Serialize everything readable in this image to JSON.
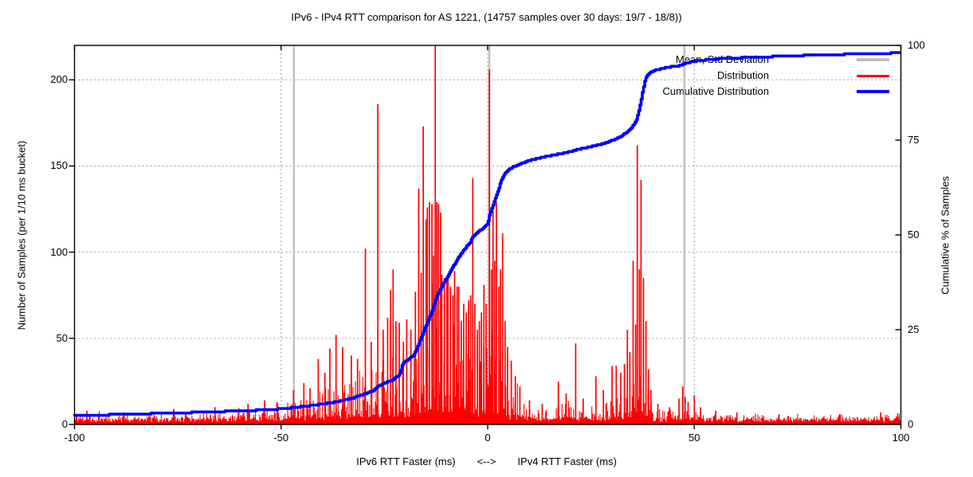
{
  "title": "IPv6 - IPv4 RTT comparison for AS 1221, (14757 samples over 30 days: 19/7 - 18/8))",
  "axes": {
    "x": {
      "label_left": "IPv6 RTT Faster (ms)",
      "label_arrow": "<-->",
      "label_right": "IPv4 RTT Faster (ms)",
      "ticks": [
        -100,
        -50,
        0,
        50,
        100
      ],
      "range": [
        -100,
        100
      ]
    },
    "y1": {
      "label": "Number of Samples (per 1/10 ms bucket)",
      "ticks": [
        0,
        50,
        100,
        150,
        200
      ],
      "range": [
        0,
        220
      ]
    },
    "y2": {
      "label": "Cumulative % of Samples",
      "ticks": [
        0,
        25,
        50,
        75,
        100
      ],
      "range": [
        0,
        100
      ]
    }
  },
  "legend": [
    {
      "label": "Mean, Std Deviation",
      "color": "#c0c0c0"
    },
    {
      "label": "Distribution",
      "color": "#ff0000"
    },
    {
      "label": "Cumulative Distribution",
      "color": "#0000ff"
    }
  ],
  "colors": {
    "distribution": "#ff0000",
    "cumulative": "#0000ff",
    "mean_std": "#c0c0c0",
    "grid": "#9a9a9a",
    "border": "#000000"
  },
  "chart_data": {
    "type": [
      "bar",
      "line"
    ],
    "title": "IPv6 - IPv4 RTT comparison for AS 1221, (14757 samples over 30 days: 19/7 - 18/8))",
    "xlabel": "IPv6 RTT Faster (ms)  <-->  IPv4 RTT Faster (ms)",
    "ylabel": "Number of Samples (per 1/10 ms bucket)",
    "y2label": "Cumulative % of Samples",
    "xlim": [
      -100,
      100
    ],
    "ylim": [
      0,
      220
    ],
    "y2lim": [
      0,
      100
    ],
    "grid_x_at": [
      -50,
      0,
      50
    ],
    "grid_y1_at": [
      50,
      100,
      150,
      200
    ],
    "samples_total": 14757,
    "days": 30,
    "date_range": "19/7 - 18/8",
    "as_number": "AS 1221",
    "mean_std_lines_x": [
      -46.9,
      0.4,
      47.6
    ],
    "distribution_spikes": [
      [
        -97,
        8
      ],
      [
        -88,
        7
      ],
      [
        -76,
        9
      ],
      [
        -66,
        10
      ],
      [
        -58,
        12
      ],
      [
        -54,
        14
      ],
      [
        -51,
        13
      ],
      [
        -47,
        20
      ],
      [
        -44.5,
        24
      ],
      [
        -43,
        21
      ],
      [
        -41,
        38
      ],
      [
        -39.4,
        30
      ],
      [
        -38.2,
        44
      ],
      [
        -36.7,
        52
      ],
      [
        -35.1,
        45
      ],
      [
        -33,
        40
      ],
      [
        -31.5,
        38
      ],
      [
        -29.6,
        102
      ],
      [
        -28.2,
        48
      ],
      [
        -26.6,
        186
      ],
      [
        -25.3,
        55
      ],
      [
        -24.2,
        62
      ],
      [
        -23.5,
        78
      ],
      [
        -22.9,
        90
      ],
      [
        -22.2,
        60
      ],
      [
        -21.4,
        59
      ],
      [
        -20.4,
        48
      ],
      [
        -19.6,
        61
      ],
      [
        -18.6,
        55
      ],
      [
        -17.5,
        77
      ],
      [
        -16.7,
        137
      ],
      [
        -16.1,
        88
      ],
      [
        -15.6,
        173
      ],
      [
        -14.9,
        119
      ],
      [
        -14.6,
        126
      ],
      [
        -14.1,
        129
      ],
      [
        -13.5,
        128
      ],
      [
        -13.1,
        98
      ],
      [
        -12.7,
        220
      ],
      [
        -12.3,
        129
      ],
      [
        -11.9,
        128
      ],
      [
        -11.4,
        123
      ],
      [
        -11.1,
        87
      ],
      [
        -10.5,
        85
      ],
      [
        -9.9,
        86
      ],
      [
        -9.6,
        87
      ],
      [
        -9.0,
        80
      ],
      [
        -8.4,
        75
      ],
      [
        -8.0,
        89
      ],
      [
        -7.4,
        80
      ],
      [
        -7.0,
        80
      ],
      [
        -6.4,
        60
      ],
      [
        -5.8,
        70
      ],
      [
        -5.2,
        65
      ],
      [
        -4.6,
        72
      ],
      [
        -4.1,
        75
      ],
      [
        -3.6,
        143
      ],
      [
        -3.1,
        70
      ],
      [
        -2.5,
        55
      ],
      [
        -2.0,
        60
      ],
      [
        -1.5,
        65
      ],
      [
        -0.9,
        81
      ],
      [
        -0.4,
        70
      ],
      [
        0.4,
        206
      ],
      [
        0.9,
        90
      ],
      [
        1.3,
        124
      ],
      [
        1.7,
        95
      ],
      [
        2.1,
        129
      ],
      [
        2.7,
        80
      ],
      [
        3.1,
        90
      ],
      [
        3.6,
        111
      ],
      [
        4.2,
        60
      ],
      [
        4.8,
        45
      ],
      [
        5.7,
        37
      ],
      [
        6.7,
        28
      ],
      [
        7.8,
        22
      ],
      [
        10.1,
        14
      ],
      [
        13.2,
        12
      ],
      [
        17.1,
        25
      ],
      [
        19.0,
        18
      ],
      [
        21.3,
        47
      ],
      [
        23.1,
        15
      ],
      [
        26.2,
        28
      ],
      [
        28.0,
        20
      ],
      [
        30.1,
        34
      ],
      [
        31.1,
        34
      ],
      [
        32.2,
        30
      ],
      [
        33.1,
        35
      ],
      [
        33.8,
        55
      ],
      [
        34.4,
        42
      ],
      [
        35.2,
        95
      ],
      [
        35.8,
        58
      ],
      [
        36.2,
        162
      ],
      [
        36.7,
        90
      ],
      [
        37.1,
        142
      ],
      [
        37.7,
        85
      ],
      [
        38.3,
        60
      ],
      [
        38.9,
        32
      ],
      [
        39.5,
        20
      ],
      [
        41.2,
        12
      ],
      [
        44.0,
        10
      ],
      [
        46.3,
        15
      ],
      [
        47.2,
        22
      ],
      [
        47.8,
        16
      ],
      [
        48.5,
        13
      ],
      [
        50.0,
        17
      ],
      [
        51.5,
        10
      ],
      [
        55.2,
        8
      ],
      [
        60.3,
        7
      ],
      [
        70.5,
        6
      ],
      [
        85.2,
        6
      ],
      [
        95.1,
        7
      ]
    ],
    "noise_envelope": [
      [
        -100,
        5
      ],
      [
        -90,
        5
      ],
      [
        -80,
        6
      ],
      [
        -70,
        7
      ],
      [
        -62,
        8
      ],
      [
        -56,
        10
      ],
      [
        -50,
        14
      ],
      [
        -46,
        18
      ],
      [
        -43,
        24
      ],
      [
        -40,
        30
      ],
      [
        -38,
        36
      ],
      [
        -36,
        42
      ],
      [
        -34,
        38
      ],
      [
        -32,
        42
      ],
      [
        -30,
        55
      ],
      [
        -28,
        52
      ],
      [
        -26,
        50
      ],
      [
        -24,
        60
      ],
      [
        -23,
        72
      ],
      [
        -22,
        60
      ],
      [
        -21,
        52
      ],
      [
        -20,
        55
      ],
      [
        -19,
        50
      ],
      [
        -18,
        62
      ],
      [
        -17,
        78
      ],
      [
        -16,
        85
      ],
      [
        -15,
        92
      ],
      [
        -14,
        100
      ],
      [
        -13,
        105
      ],
      [
        -12,
        100
      ],
      [
        -11,
        88
      ],
      [
        -10,
        80
      ],
      [
        -9,
        78
      ],
      [
        -8,
        78
      ],
      [
        -7,
        70
      ],
      [
        -6,
        65
      ],
      [
        -5,
        68
      ],
      [
        -4,
        64
      ],
      [
        -3,
        60
      ],
      [
        -2,
        62
      ],
      [
        -1,
        66
      ],
      [
        0,
        72
      ],
      [
        1,
        80
      ],
      [
        2,
        76
      ],
      [
        3,
        62
      ],
      [
        4,
        48
      ],
      [
        5,
        36
      ],
      [
        6,
        28
      ],
      [
        7,
        24
      ],
      [
        8,
        20
      ],
      [
        10,
        15
      ],
      [
        12,
        13
      ],
      [
        14,
        12
      ],
      [
        16,
        13
      ],
      [
        18,
        15
      ],
      [
        20,
        18
      ],
      [
        21,
        22
      ],
      [
        22,
        16
      ],
      [
        24,
        13
      ],
      [
        26,
        16
      ],
      [
        28,
        16
      ],
      [
        30,
        24
      ],
      [
        31,
        30
      ],
      [
        32,
        30
      ],
      [
        33,
        34
      ],
      [
        34,
        32
      ],
      [
        35,
        40
      ],
      [
        36,
        70
      ],
      [
        36.5,
        85
      ],
      [
        37,
        90
      ],
      [
        37.5,
        80
      ],
      [
        38,
        60
      ],
      [
        38.5,
        40
      ],
      [
        39,
        22
      ],
      [
        40,
        13
      ],
      [
        42,
        9
      ],
      [
        44,
        8
      ],
      [
        46,
        10
      ],
      [
        47,
        14
      ],
      [
        48,
        12
      ],
      [
        49,
        9
      ],
      [
        50,
        10
      ],
      [
        52,
        7
      ],
      [
        55,
        6
      ],
      [
        60,
        5
      ],
      [
        70,
        5
      ],
      [
        80,
        5
      ],
      [
        90,
        5
      ],
      [
        100,
        6
      ]
    ],
    "noise_seed": 1221,
    "noise_step": 0.2,
    "cumulative_pct": [
      [
        -100,
        2.3
      ],
      [
        -90,
        2.6
      ],
      [
        -80,
        2.9
      ],
      [
        -70,
        3.2
      ],
      [
        -60,
        3.6
      ],
      [
        -55,
        3.8
      ],
      [
        -50,
        4.1
      ],
      [
        -45,
        4.7
      ],
      [
        -40,
        5.4
      ],
      [
        -36,
        6.1
      ],
      [
        -33,
        6.9
      ],
      [
        -30,
        8.0
      ],
      [
        -28,
        8.8
      ],
      [
        -26.6,
        10.1
      ],
      [
        -25,
        10.9
      ],
      [
        -23,
        11.8
      ],
      [
        -21.5,
        13.0
      ],
      [
        -20.5,
        16.2
      ],
      [
        -19.5,
        17.0
      ],
      [
        -18,
        18.2
      ],
      [
        -17,
        20.5
      ],
      [
        -16,
        23.3
      ],
      [
        -15,
        26.0
      ],
      [
        -14,
        28.6
      ],
      [
        -13,
        31.5
      ],
      [
        -12.6,
        33.2
      ],
      [
        -12,
        34.5
      ],
      [
        -11,
        36.6
      ],
      [
        -10,
        38.6
      ],
      [
        -9,
        40.6
      ],
      [
        -8,
        42.4
      ],
      [
        -7,
        44.2
      ],
      [
        -6,
        45.8
      ],
      [
        -5,
        47.2
      ],
      [
        -4.2,
        48.2
      ],
      [
        -3.6,
        49.6
      ],
      [
        -3,
        50.3
      ],
      [
        -2,
        51.1
      ],
      [
        -1,
        51.9
      ],
      [
        -0.5,
        52.4
      ],
      [
        0,
        53.2
      ],
      [
        0.4,
        55.2
      ],
      [
        1,
        57.2
      ],
      [
        1.5,
        58.8
      ],
      [
        2,
        60.2
      ],
      [
        2.5,
        61.8
      ],
      [
        3,
        63.6
      ],
      [
        3.5,
        65.0
      ],
      [
        4,
        66.1
      ],
      [
        5,
        67.2
      ],
      [
        6,
        67.9
      ],
      [
        8,
        68.8
      ],
      [
        10,
        69.6
      ],
      [
        12,
        70.2
      ],
      [
        15,
        70.9
      ],
      [
        18,
        71.5
      ],
      [
        20,
        72.0
      ],
      [
        22,
        72.6
      ],
      [
        25,
        73.3
      ],
      [
        28,
        74.1
      ],
      [
        30,
        74.9
      ],
      [
        31,
        75.3
      ],
      [
        32,
        75.9
      ],
      [
        33,
        76.6
      ],
      [
        34,
        77.4
      ],
      [
        35,
        78.6
      ],
      [
        35.6,
        79.5
      ],
      [
        36,
        80.6
      ],
      [
        36.5,
        82.5
      ],
      [
        37,
        85.0
      ],
      [
        37.5,
        88.0
      ],
      [
        38,
        90.6
      ],
      [
        38.5,
        92.0
      ],
      [
        39,
        92.7
      ],
      [
        40,
        93.3
      ],
      [
        41,
        93.6
      ],
      [
        42,
        93.9
      ],
      [
        44,
        94.3
      ],
      [
        46,
        94.6
      ],
      [
        47,
        94.9
      ],
      [
        48,
        95.4
      ],
      [
        49,
        95.6
      ],
      [
        50,
        95.8
      ],
      [
        52,
        96.1
      ],
      [
        55,
        96.4
      ],
      [
        60,
        96.7
      ],
      [
        65,
        96.9
      ],
      [
        70,
        97.1
      ],
      [
        75,
        97.3
      ],
      [
        80,
        97.5
      ],
      [
        85,
        97.6
      ],
      [
        90,
        97.8
      ],
      [
        95,
        97.9
      ],
      [
        100,
        98.0
      ]
    ]
  }
}
